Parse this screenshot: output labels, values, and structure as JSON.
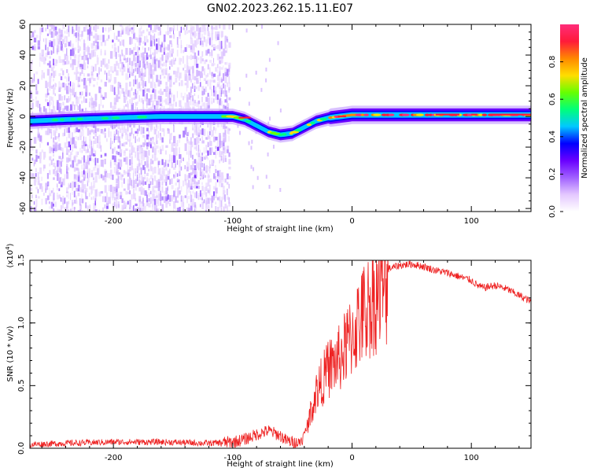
{
  "figure": {
    "title": "GN02.2023.262.15.11.E07"
  },
  "chart_data": [
    {
      "type": "heatmap",
      "name": "spectrogram",
      "xlabel": "Height of straight line (km)",
      "ylabel": "Frequency (Hz)",
      "xlim": [
        -270,
        150
      ],
      "ylim": [
        -62,
        60
      ],
      "x_ticks": [
        "-200",
        "-100",
        "0",
        "100"
      ],
      "x_tick_values": [
        -200,
        -100,
        0,
        100
      ],
      "y_ticks": [
        "-60",
        "-40",
        "-20",
        "0",
        "20",
        "40",
        "60"
      ],
      "y_tick_values": [
        -60,
        -40,
        -20,
        0,
        20,
        40,
        60
      ],
      "colorbar": {
        "label": "Normalized spectral amplitude",
        "ticks": [
          "0.0",
          "0.2",
          "0.4",
          "0.6",
          "0.8"
        ],
        "tick_values": [
          0.0,
          0.2,
          0.4,
          0.6,
          0.8
        ],
        "range": [
          0,
          1
        ],
        "colormap": [
          "#ffffff",
          "#e4c8ff",
          "#a060ff",
          "#6a00ff",
          "#0000ff",
          "#00c8ff",
          "#00ff7a",
          "#66ff00",
          "#ffdd00",
          "#ff8800",
          "#ff1a3a",
          "#ff2d7a"
        ]
      },
      "ridge": {
        "x": [
          -270,
          -240,
          -200,
          -160,
          -120,
          -100,
          -90,
          -80,
          -70,
          -60,
          -50,
          -40,
          -30,
          -20,
          -10,
          0,
          20,
          50,
          100,
          150
        ],
        "y": [
          -3,
          -2,
          -1,
          0,
          0,
          0,
          -2,
          -6,
          -10,
          -12,
          -11,
          -7,
          -3,
          -1,
          0,
          1,
          1,
          1,
          1,
          1
        ]
      },
      "grid": false
    },
    {
      "type": "line",
      "name": "snr",
      "xlabel": "Height of straight line (km)",
      "ylabel": "SNR (10 * v/v)",
      "y_multiplier": "(x10",
      "y_multiplier_exp": "4",
      "y_multiplier_close": ")",
      "xlim": [
        -270,
        150
      ],
      "ylim": [
        0,
        1.5
      ],
      "x_ticks": [
        "-200",
        "-100",
        "0",
        "100"
      ],
      "x_tick_values": [
        -200,
        -100,
        0,
        100
      ],
      "y_ticks": [
        "0.0",
        "0.5",
        "1.0",
        "1.5"
      ],
      "y_tick_values": [
        0.0,
        0.5,
        1.0,
        1.5
      ],
      "series": [
        {
          "color": "#ee2222",
          "x": [
            -270,
            -240,
            -200,
            -160,
            -120,
            -100,
            -90,
            -80,
            -70,
            -60,
            -55,
            -50,
            -45,
            -40,
            -35,
            -30,
            -25,
            -20,
            -15,
            -10,
            -5,
            0,
            5,
            10,
            20,
            30,
            40,
            50,
            60,
            70,
            80,
            90,
            100,
            105,
            110,
            120,
            130,
            140,
            150
          ],
          "y": [
            0.03,
            0.04,
            0.05,
            0.05,
            0.04,
            0.05,
            0.07,
            0.11,
            0.14,
            0.1,
            0.06,
            0.05,
            0.04,
            0.1,
            0.3,
            0.5,
            0.6,
            0.7,
            0.75,
            0.8,
            0.9,
            1.0,
            1.1,
            1.2,
            1.35,
            1.43,
            1.46,
            1.47,
            1.45,
            1.42,
            1.4,
            1.37,
            1.34,
            1.3,
            1.28,
            1.3,
            1.27,
            1.22,
            1.17
          ]
        }
      ],
      "grid": false
    }
  ]
}
